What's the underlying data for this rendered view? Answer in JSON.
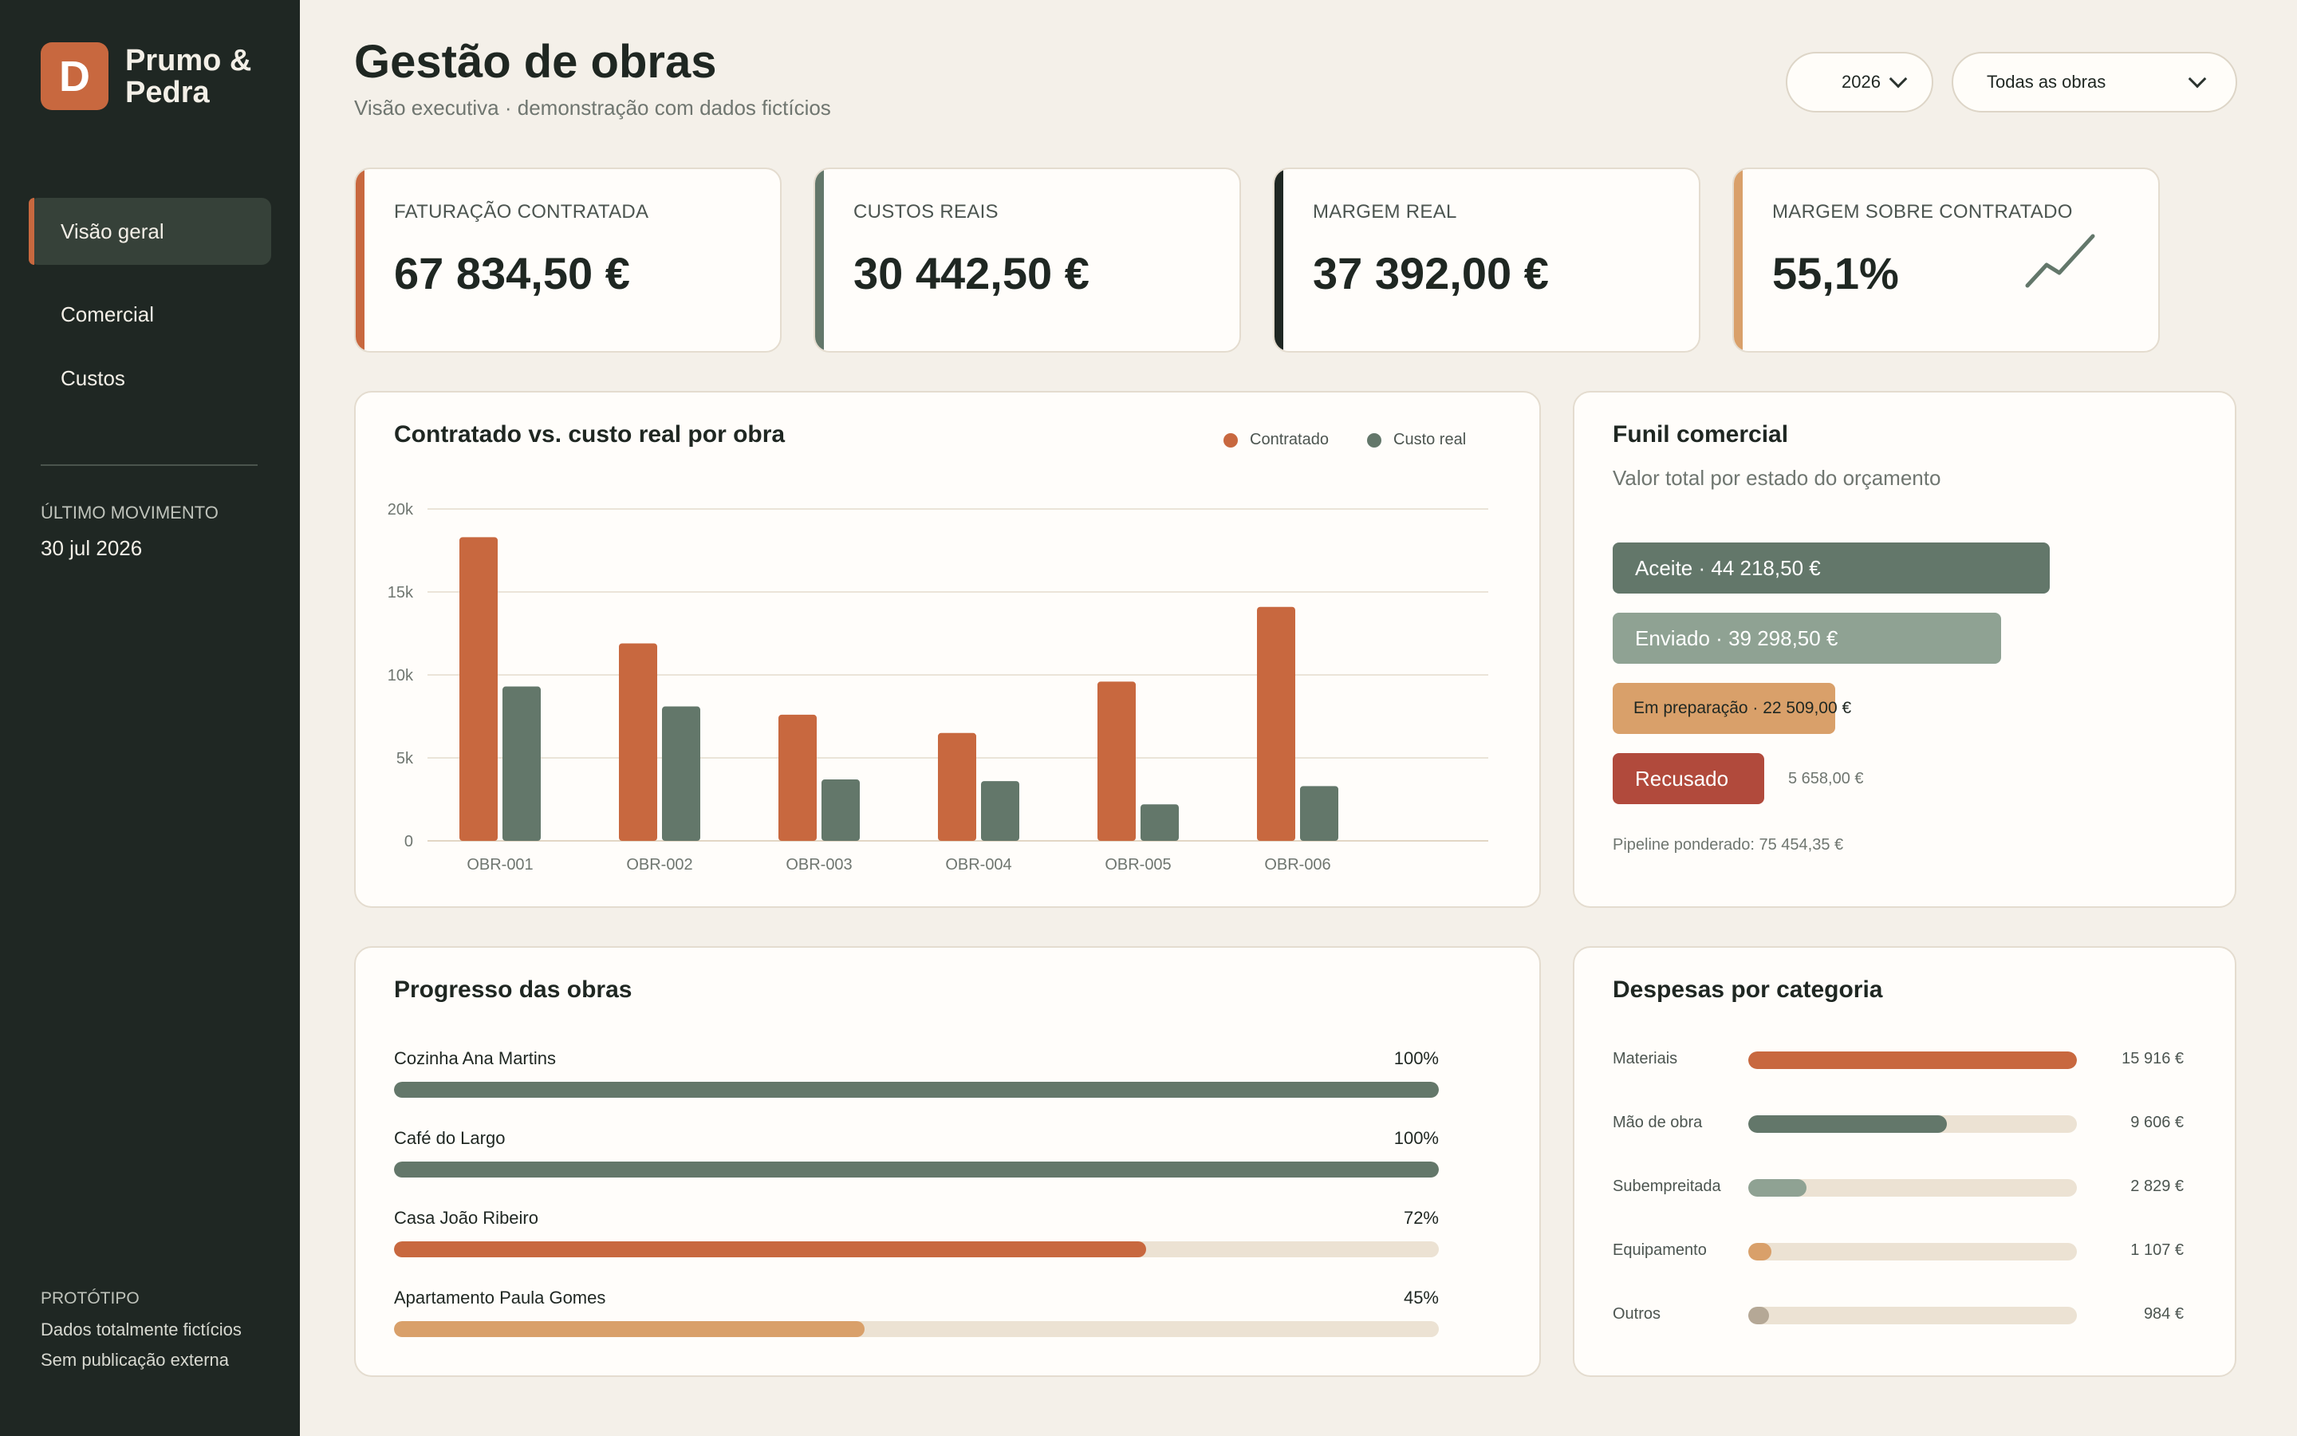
{
  "brand": {
    "logo_letter": "D",
    "name": "Prumo & Pedra"
  },
  "nav": {
    "items": [
      {
        "label": "Visão geral",
        "active": true
      },
      {
        "label": "Comercial",
        "active": false
      },
      {
        "label": "Custos",
        "active": false
      }
    ]
  },
  "sidebar": {
    "last_movement_label": "ÚLTIMO MOVIMENTO",
    "last_movement_date": "30 jul 2026",
    "prototype_title": "PROTÓTIPO",
    "prototype_line1": "Dados totalmente fictícios",
    "prototype_line2": "Sem publicação externa"
  },
  "header": {
    "title": "Gestão de obras",
    "subtitle": "Visão executiva · demonstração com dados fictícios",
    "year_select": "2026",
    "obras_select": "Todas as obras"
  },
  "kpis": [
    {
      "label": "FATURAÇÃO CONTRATADA",
      "value": "67 834,50 €",
      "accent": "#c8683f"
    },
    {
      "label": "CUSTOS REAIS",
      "value": "30 442,50 €",
      "accent": "#63776a"
    },
    {
      "label": "MARGEM REAL",
      "value": "37 392,00 €",
      "accent": "#1f2723"
    },
    {
      "label": "MARGEM SOBRE CONTRATADO",
      "value": "55,1%",
      "accent": "#d9a06a",
      "icon": "trend-up-icon"
    }
  ],
  "bar_panel": {
    "title": "Contratado vs. custo real por obra",
    "legend_contracted": "Contratado",
    "legend_cost": "Custo real"
  },
  "chart_data": {
    "type": "bar",
    "title": "Contratado vs. custo real por obra",
    "categories": [
      "OBR-001",
      "OBR-002",
      "OBR-003",
      "OBR-004",
      "OBR-005",
      "OBR-006"
    ],
    "series": [
      {
        "name": "Contratado",
        "color": "#c8683f",
        "values": [
          18300,
          11900,
          7600,
          6500,
          9600,
          14100
        ]
      },
      {
        "name": "Custo real",
        "color": "#63776a",
        "values": [
          9300,
          8100,
          3700,
          3600,
          2200,
          3300
        ]
      }
    ],
    "y_ticks": [
      "0",
      "5k",
      "10k",
      "15k",
      "20k"
    ],
    "ylim": [
      0,
      20000
    ],
    "grid": true,
    "legend": "top-right"
  },
  "funnel": {
    "title": "Funil comercial",
    "subtitle": "Valor total por estado do orçamento",
    "stages": [
      {
        "label": "Aceite · 44 218,50 €",
        "value": 44218.5,
        "color": "#63776a",
        "text_color": "#ffffff"
      },
      {
        "label": "Enviado · 39 298,50 €",
        "value": 39298.5,
        "color": "#8fa293",
        "text_color": "#ffffff"
      },
      {
        "label": "Em preparação · 22 509,00 €",
        "value": 22509,
        "color": "#d9a06a",
        "text_color": "#1f2722"
      },
      {
        "label": "Recusado",
        "outside_label": "5 658,00 €",
        "value": 5658,
        "color": "#b14a3c",
        "text_color": "#ffffff"
      }
    ],
    "pipeline": "Pipeline ponderado: 75 454,35 €"
  },
  "progress": {
    "title": "Progresso das obras",
    "items": [
      {
        "name": "Cozinha Ana Martins",
        "percent_label": "100%",
        "value": 100,
        "color": "#63776a"
      },
      {
        "name": "Café do Largo",
        "percent_label": "100%",
        "value": 100,
        "color": "#63776a"
      },
      {
        "name": "Casa João Ribeiro",
        "percent_label": "72%",
        "value": 72,
        "color": "#c8683f"
      },
      {
        "name": "Apartamento Paula Gomes",
        "percent_label": "45%",
        "value": 45,
        "color": "#d9a06a"
      }
    ]
  },
  "expenses": {
    "title": "Despesas por categoria",
    "items": [
      {
        "label": "Materiais",
        "value_label": "15 916 €",
        "value": 15916,
        "color": "#c8683f"
      },
      {
        "label": "Mão de obra",
        "value_label": "9 606 €",
        "value": 9606,
        "color": "#63776a"
      },
      {
        "label": "Subempreitada",
        "value_label": "2 829 €",
        "value": 2829,
        "color": "#8fa293"
      },
      {
        "label": "Equipamento",
        "value_label": "1 107 €",
        "value": 1107,
        "color": "#d9a06a"
      },
      {
        "label": "Outros",
        "value_label": "984 €",
        "value": 984,
        "color": "#b5a896"
      }
    ]
  }
}
